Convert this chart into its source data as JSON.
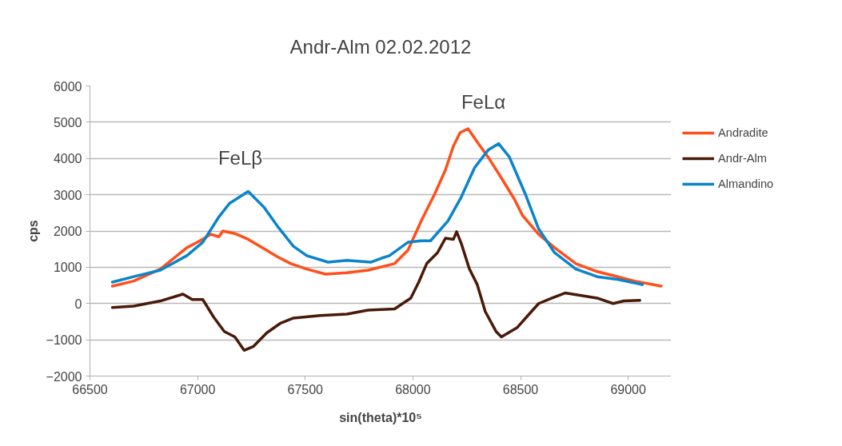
{
  "chart_data": {
    "type": "line",
    "title": "Andr-Alm 02.02.2012",
    "xlabel": "sin(theta)*10⁵",
    "ylabel": "cps",
    "xlim": [
      66500,
      69200
    ],
    "xticks": [
      66500,
      67000,
      67500,
      68000,
      68500,
      69000
    ],
    "ylim": [
      -2000,
      6000
    ],
    "yticks": [
      -2000,
      -1000,
      0,
      1000,
      2000,
      3000,
      4000,
      5000,
      6000
    ],
    "grid": "y",
    "legend": "right",
    "marker": "none",
    "line_style": "solid",
    "annotations": [
      "FeLβ",
      "FeLα"
    ],
    "series": [
      {
        "name": "Andradite",
        "color": "#ff4f1a",
        "x": [
          66604,
          66703,
          66827,
          66950,
          66999,
          67062,
          67099,
          67117,
          67173,
          67235,
          67309,
          67371,
          67433,
          67507,
          67594,
          67693,
          67792,
          67915,
          67977,
          68039,
          68101,
          68151,
          68188,
          68219,
          68256,
          68299,
          68349,
          68411,
          68472,
          68509,
          68584,
          68658,
          68757,
          68856,
          68930,
          69029,
          69153
        ],
        "values": [
          480,
          620,
          950,
          1540,
          1690,
          1910,
          1840,
          2000,
          1930,
          1770,
          1510,
          1290,
          1100,
          950,
          810,
          850,
          920,
          1100,
          1470,
          2280,
          3020,
          3680,
          4340,
          4710,
          4820,
          4450,
          4040,
          3460,
          2870,
          2430,
          1910,
          1540,
          1100,
          880,
          770,
          620,
          480
        ]
      },
      {
        "name": "Andr-Alm",
        "color": "#4a1a08",
        "x": [
          66604,
          66703,
          66827,
          66932,
          66975,
          67024,
          67074,
          67124,
          67173,
          67216,
          67260,
          67321,
          67383,
          67445,
          67569,
          67693,
          67792,
          67915,
          67990,
          68027,
          68064,
          68114,
          68151,
          68188,
          68203,
          68225,
          68262,
          68299,
          68336,
          68386,
          68411,
          68485,
          68534,
          68584,
          68646,
          68707,
          68782,
          68856,
          68930,
          68980,
          69054
        ],
        "values": [
          -110,
          -70,
          70,
          260,
          110,
          110,
          -370,
          -770,
          -920,
          -1290,
          -1180,
          -810,
          -550,
          -400,
          -330,
          -290,
          -180,
          -150,
          150,
          590,
          1100,
          1400,
          1800,
          1770,
          1980,
          1650,
          960,
          520,
          -220,
          -770,
          -920,
          -660,
          -330,
          0,
          150,
          290,
          220,
          150,
          0,
          70,
          90
        ]
      },
      {
        "name": "Almandino",
        "color": "#0a84cc",
        "x": [
          66604,
          66703,
          66827,
          66950,
          67024,
          67099,
          67148,
          67235,
          67309,
          67371,
          67445,
          67507,
          67606,
          67693,
          67804,
          67854,
          67891,
          67977,
          68039,
          68082,
          68163,
          68225,
          68287,
          68349,
          68398,
          68448,
          68522,
          68584,
          68658,
          68757,
          68856,
          68955,
          69066
        ],
        "values": [
          590,
          740,
          920,
          1320,
          1690,
          2390,
          2760,
          3090,
          2650,
          2130,
          1580,
          1320,
          1140,
          1190,
          1140,
          1250,
          1320,
          1690,
          1730,
          1730,
          2280,
          2940,
          3750,
          4230,
          4410,
          4040,
          3020,
          2060,
          1400,
          950,
          740,
          660,
          520
        ]
      }
    ]
  }
}
